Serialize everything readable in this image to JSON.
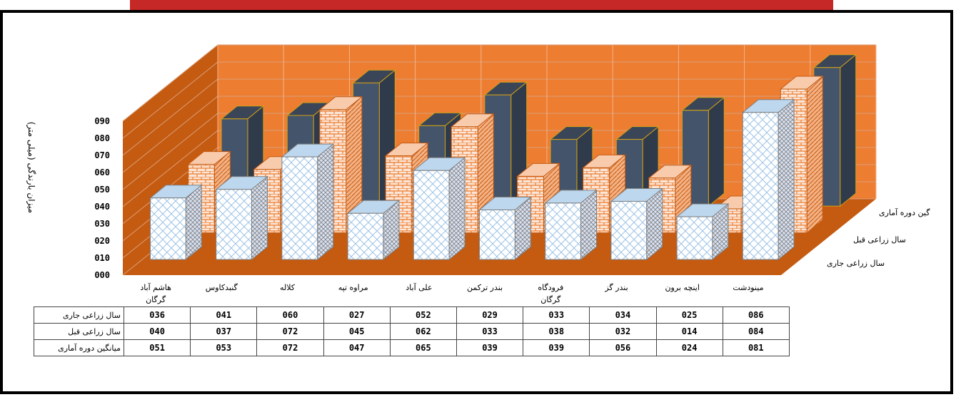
{
  "chart_data": {
    "type": "bar",
    "ylabel": "میزان بارندگی (میلی متر)",
    "ylim": [
      0,
      90
    ],
    "yticks": [
      "000",
      "010",
      "020",
      "030",
      "040",
      "050",
      "060",
      "070",
      "080",
      "090"
    ],
    "categories": [
      "هاشم آباد گرگان",
      "گنبدکاوس",
      "کلاله",
      "مراوه تپه",
      "علی آباد",
      "بندر ترکمن",
      "فرودگاه گرگان",
      "بندر گز",
      "اینچه برون",
      "مینودشت"
    ],
    "category_lines": [
      [
        "هاشم آباد",
        "گرگان"
      ],
      [
        "گنبدکاوس"
      ],
      [
        "کلاله"
      ],
      [
        "مراوه تپه"
      ],
      [
        "علی آباد"
      ],
      [
        "بندر ترکمن"
      ],
      [
        "فرودگاه",
        "گرگان"
      ],
      [
        "بندر گز"
      ],
      [
        "اینچه برون"
      ],
      [
        "مینودشت"
      ]
    ],
    "series": [
      {
        "name": "سال زراعی جاری",
        "values": [
          36,
          41,
          60,
          27,
          52,
          29,
          33,
          34,
          25,
          86
        ],
        "labels": [
          "036",
          "041",
          "060",
          "027",
          "052",
          "029",
          "033",
          "034",
          "025",
          "086"
        ]
      },
      {
        "name": "سال زراعی قبل",
        "values": [
          40,
          37,
          72,
          45,
          62,
          33,
          38,
          32,
          14,
          84
        ],
        "labels": [
          "040",
          "037",
          "072",
          "045",
          "062",
          "033",
          "038",
          "032",
          "014",
          "084"
        ]
      },
      {
        "name": "میانگین دوره آماری",
        "values": [
          51,
          53,
          72,
          47,
          65,
          39,
          39,
          56,
          24,
          81
        ],
        "labels": [
          "051",
          "053",
          "072",
          "047",
          "065",
          "039",
          "039",
          "056",
          "024",
          "081"
        ]
      }
    ],
    "depth_series_labels": [
      "گین دوره آماری",
      "سال زراعی قبل",
      "سال زراعی جاری"
    ],
    "colors": {
      "back_wall": "#ed7d31",
      "side_wall": "#c55a11",
      "floor": "#c55a11",
      "navy": "#44546a",
      "brick": "#fbe5d6",
      "brick_line": "#ed7d31",
      "pattern": "#ffffff",
      "pattern_line": "#9dc3e6",
      "edge_gold": "#d4a017"
    }
  }
}
